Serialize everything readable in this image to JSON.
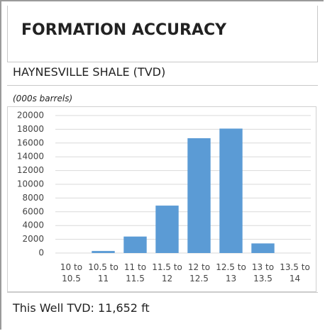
{
  "chart_data": {
    "type": "bar",
    "title": "FORMATION ACCURACY",
    "subtitle": "HAYNESVILLE SHALE (TVD)",
    "y_label": "(000s barrels)",
    "footer": "This Well TVD: 11,652 ft",
    "categories": [
      "10 to 10.5",
      "10.5 to 11",
      "11 to 11.5",
      "11.5 to 12",
      "12 to 12.5",
      "12.5 to 13",
      "13 to 13.5",
      "13.5 to 14"
    ],
    "values": [
      0,
      300,
      2400,
      6900,
      16700,
      18100,
      1400,
      0
    ],
    "color": "#5b9bd5",
    "ylim": [
      0,
      20000
    ],
    "yticks": [
      0,
      2000,
      4000,
      6000,
      8000,
      10000,
      12000,
      14000,
      16000,
      18000,
      20000
    ],
    "grid": true
  }
}
